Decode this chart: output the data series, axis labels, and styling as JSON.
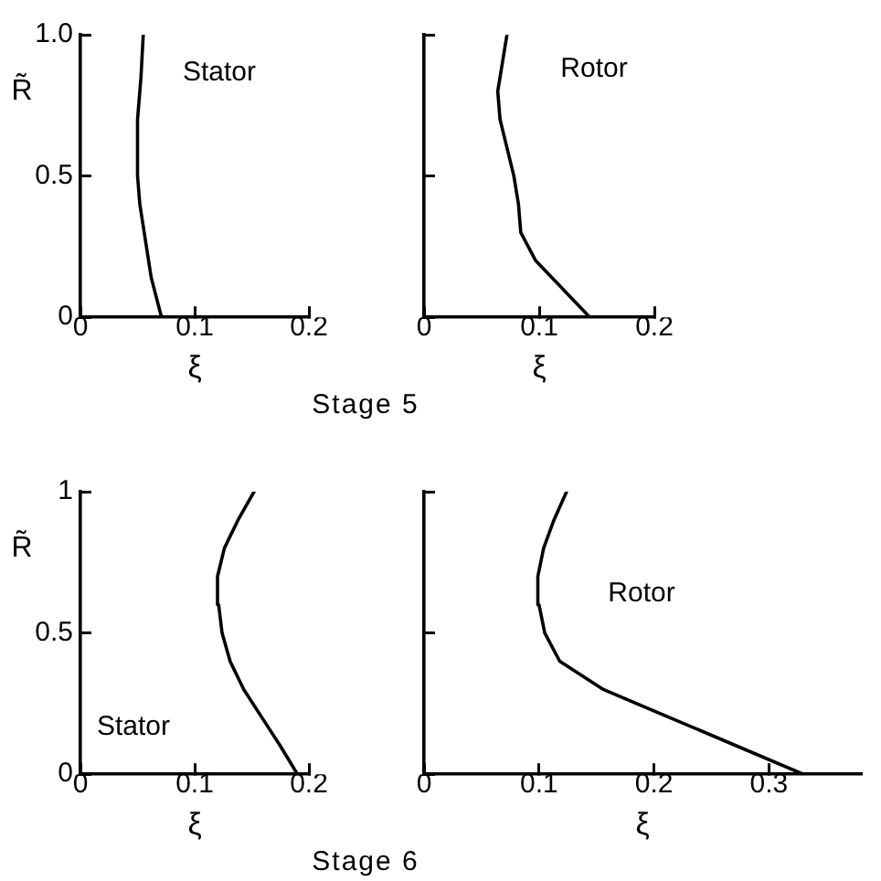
{
  "chart_data": [
    {
      "type": "line",
      "xlabel": "ξ",
      "ylabel": "R̃",
      "xlim": [
        0,
        0.2
      ],
      "ylim": [
        0,
        1
      ],
      "xticks": [
        0,
        0.1,
        0.2
      ],
      "yticks": [
        0,
        0.5,
        {
          "value": 1,
          "label": "1.0"
        }
      ],
      "grid": false,
      "legend": false,
      "marker": "none",
      "line_style": "solid",
      "annotations": [
        "Stator",
        "Stage 5"
      ],
      "series": [
        {
          "color": "#000000",
          "x": [
            0.071,
            0.062,
            0.057,
            0.052,
            0.05,
            0.05,
            0.053,
            0.055
          ],
          "values": [
            0,
            0.14,
            0.27,
            0.4,
            0.5,
            0.7,
            0.85,
            1.0
          ]
        }
      ]
    },
    {
      "type": "line",
      "xlabel": "ξ",
      "xlim": [
        0,
        0.2
      ],
      "ylim": [
        0,
        1
      ],
      "xticks": [
        0,
        0.1,
        0.2
      ],
      "yticks": [
        {
          "value": 0,
          "label": null
        },
        {
          "value": 0.5,
          "label": null
        },
        {
          "value": 1,
          "label": null
        }
      ],
      "tick_labels": "x",
      "grid": false,
      "legend": false,
      "marker": "none",
      "line_style": "solid",
      "annotations": [
        "Rotor"
      ],
      "series": [
        {
          "color": "#000000",
          "x": [
            0.144,
            0.097,
            0.084,
            0.082,
            0.078,
            0.072,
            0.066,
            0.064,
            0.068,
            0.072
          ],
          "values": [
            0,
            0.2,
            0.3,
            0.4,
            0.5,
            0.6,
            0.7,
            0.8,
            0.9,
            1.0
          ]
        }
      ]
    },
    {
      "type": "line",
      "xlabel": "ξ",
      "ylabel": "R̃",
      "xlim": [
        0,
        0.2
      ],
      "ylim": [
        0,
        1
      ],
      "xticks": [
        0,
        0.1,
        0.2
      ],
      "yticks": [
        0,
        0.5,
        1
      ],
      "grid": false,
      "legend": false,
      "marker": "none",
      "line_style": "solid",
      "annotations": [
        "Stator",
        "Stage 6"
      ],
      "series": [
        {
          "color": "#000000",
          "x": [
            0.19,
            0.175,
            0.159,
            0.143,
            0.131,
            0.124,
            0.121,
            0.12,
            0.126,
            0.138,
            0.152
          ],
          "values": [
            0,
            0.1,
            0.2,
            0.3,
            0.4,
            0.5,
            0.6,
            0.7,
            0.8,
            0.9,
            1.0
          ]
        }
      ]
    },
    {
      "type": "line",
      "xlabel": "ξ",
      "xlim": [
        0,
        0.38
      ],
      "ylim": [
        0,
        1
      ],
      "xticks": [
        0,
        0.1,
        0.2,
        0.3
      ],
      "yticks": [
        {
          "value": 0,
          "label": null
        },
        {
          "value": 0.5,
          "label": null
        },
        {
          "value": 1,
          "label": null
        }
      ],
      "tick_labels": "x",
      "grid": false,
      "legend": false,
      "marker": "none",
      "line_style": "solid",
      "annotations": [
        "Rotor"
      ],
      "series": [
        {
          "color": "#000000",
          "x": [
            0.33,
            0.272,
            0.214,
            0.156,
            0.118,
            0.105,
            0.1,
            0.099,
            0.104,
            0.113,
            0.124
          ],
          "values": [
            0,
            0.1,
            0.2,
            0.3,
            0.4,
            0.5,
            0.6,
            0.7,
            0.8,
            0.9,
            1.0
          ]
        }
      ]
    }
  ]
}
